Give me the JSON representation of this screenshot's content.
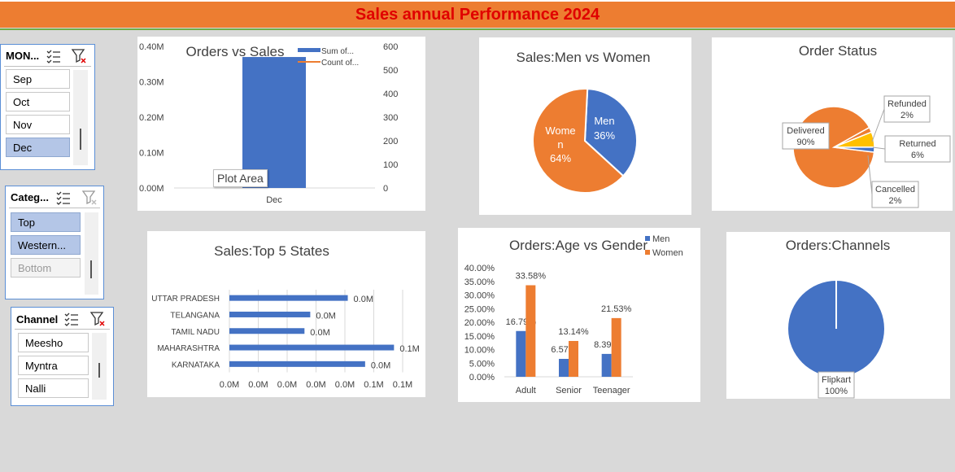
{
  "header": {
    "title": "Sales annual Performance  2024"
  },
  "slicers": {
    "month": {
      "title": "MON...",
      "items": [
        {
          "label": "Sep",
          "selected": false
        },
        {
          "label": "Oct",
          "selected": false
        },
        {
          "label": "Nov",
          "selected": false
        },
        {
          "label": "Dec",
          "selected": true
        }
      ]
    },
    "category": {
      "title": "Categ...",
      "items": [
        {
          "label": "Top",
          "selected": true
        },
        {
          "label": "Western...",
          "selected": true
        },
        {
          "label": "Bottom",
          "selected": false
        }
      ]
    },
    "channel": {
      "title": "Channel",
      "items": [
        {
          "label": "Meesho"
        },
        {
          "label": "Myntra"
        },
        {
          "label": "Nalli"
        }
      ]
    }
  },
  "tooltip": {
    "label": "Plot Area"
  },
  "colors": {
    "blue": "#4472c4",
    "orange": "#ed7d31",
    "yellow": "#ffc000",
    "header": "#ed7d31",
    "title_text": "#e00000"
  },
  "chart_data": [
    {
      "id": "orders_vs_sales",
      "type": "bar",
      "title": "Orders vs Sales",
      "categories": [
        "Dec"
      ],
      "series": [
        {
          "name": "Sum of...",
          "axis": "left",
          "values": [
            0.37
          ]
        },
        {
          "name": "Count of...",
          "axis": "right",
          "type": "line",
          "values": [
            null
          ]
        }
      ],
      "yticks_left": [
        "0.00M",
        "0.10M",
        "0.20M",
        "0.30M",
        "0.40M"
      ],
      "yticks_right": [
        "0",
        "100",
        "200",
        "300",
        "400",
        "500",
        "600"
      ],
      "ylim": [
        0,
        0.4
      ]
    },
    {
      "id": "sales_men_women",
      "type": "pie",
      "title": "Sales:Men vs Women",
      "slices": [
        {
          "label": "Men",
          "value": 36,
          "pct": "36%"
        },
        {
          "label": "Women",
          "value": 64,
          "pct": "64%"
        }
      ]
    },
    {
      "id": "order_status",
      "type": "pie",
      "title": "Order Status",
      "slices": [
        {
          "label": "Delivered",
          "value": 90,
          "pct": "90%"
        },
        {
          "label": "Refunded",
          "value": 2,
          "pct": "2%"
        },
        {
          "label": "Returned",
          "value": 6,
          "pct": "6%"
        },
        {
          "label": "Cancelled",
          "value": 2,
          "pct": "2%"
        }
      ]
    },
    {
      "id": "top5_states",
      "type": "bar",
      "orientation": "horizontal",
      "title": "Sales:Top 5 States",
      "categories": [
        "UTTAR PRADESH",
        "TELANGANA",
        "TAMIL NADU",
        "MAHARASHTRA",
        "KARNATAKA"
      ],
      "values": [
        0.041,
        0.028,
        0.026,
        0.057,
        0.047
      ],
      "data_labels": [
        "0.0M",
        "0.0M",
        "0.0M",
        "0.1M",
        "0.0M"
      ],
      "xticks": [
        "0.0M",
        "0.0M",
        "0.0M",
        "0.0M",
        "0.0M",
        "0.1M",
        "0.1M"
      ],
      "xlim": [
        0,
        0.06
      ]
    },
    {
      "id": "age_vs_gender",
      "type": "bar",
      "title": "Orders:Age vs Gender",
      "categories": [
        "Adult",
        "Senior",
        "Teenager"
      ],
      "series": [
        {
          "name": "Men",
          "values": [
            16.79,
            6.57,
            8.39
          ],
          "labels": [
            "16.79%",
            "6.57%",
            "8.39%"
          ]
        },
        {
          "name": "Women",
          "values": [
            33.58,
            13.14,
            21.53
          ],
          "labels": [
            "33.58%",
            "13.14%",
            "21.53%"
          ]
        }
      ],
      "yticks": [
        "0.00%",
        "5.00%",
        "10.00%",
        "15.00%",
        "20.00%",
        "25.00%",
        "30.00%",
        "35.00%",
        "40.00%"
      ],
      "ylim": [
        0,
        40
      ]
    },
    {
      "id": "channels",
      "type": "pie",
      "title": "Orders:Channels",
      "slices": [
        {
          "label": "Flipkart",
          "value": 100,
          "pct": "100%"
        }
      ]
    }
  ]
}
